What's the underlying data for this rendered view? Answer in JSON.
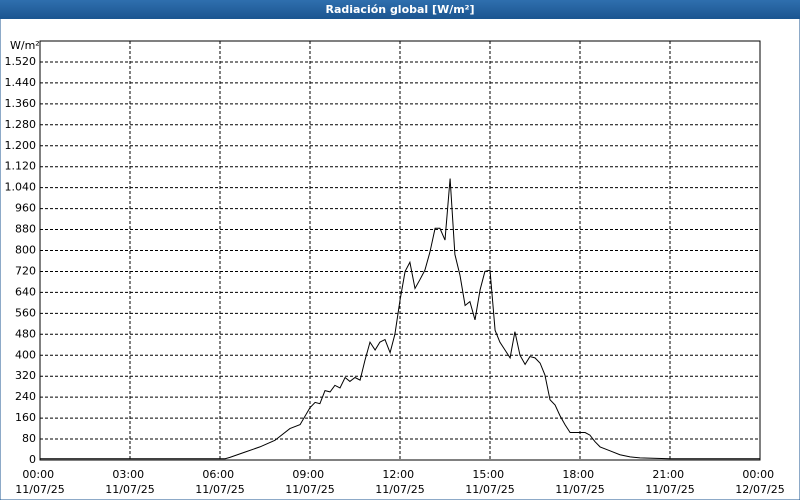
{
  "chart_data": {
    "type": "line",
    "title": "Radiación global [W/m²]",
    "y_label": "W/m²",
    "x": [
      0,
      1,
      2,
      3,
      4,
      5,
      6,
      6.17,
      6.33,
      6.83,
      7.33,
      7.83,
      8.33,
      8.67,
      9.0,
      9.17,
      9.33,
      9.5,
      9.67,
      9.83,
      10.0,
      10.17,
      10.33,
      10.5,
      10.67,
      10.83,
      11.0,
      11.17,
      11.33,
      11.5,
      11.67,
      11.83,
      12.0,
      12.17,
      12.33,
      12.5,
      12.67,
      12.83,
      13.0,
      13.17,
      13.33,
      13.5,
      13.67,
      13.83,
      14.0,
      14.17,
      14.33,
      14.5,
      14.67,
      14.83,
      15.0,
      15.17,
      15.33,
      15.5,
      15.67,
      15.83,
      16.0,
      16.17,
      16.33,
      16.5,
      16.67,
      16.83,
      17.0,
      17.17,
      17.33,
      17.5,
      17.67,
      17.83,
      18.0,
      18.17,
      18.33,
      18.5,
      18.67,
      19.0,
      19.33,
      19.67,
      20.0,
      21,
      22,
      23,
      24
    ],
    "series": [
      {
        "name": "Radiación global",
        "color": "#000000",
        "values": [
          5,
          5,
          5,
          5,
          5,
          5,
          5,
          5,
          10,
          30,
          50,
          75,
          120,
          135,
          200,
          220,
          215,
          265,
          260,
          285,
          275,
          315,
          300,
          315,
          305,
          380,
          450,
          420,
          450,
          460,
          410,
          480,
          610,
          720,
          755,
          655,
          690,
          725,
          795,
          885,
          885,
          840,
          1075,
          785,
          705,
          590,
          605,
          535,
          650,
          720,
          725,
          495,
          450,
          420,
          390,
          490,
          400,
          365,
          395,
          390,
          370,
          325,
          230,
          210,
          170,
          135,
          105,
          105,
          105,
          105,
          95,
          70,
          50,
          35,
          20,
          12,
          8,
          5,
          5,
          5,
          5
        ]
      }
    ],
    "xlim": [
      0,
      24
    ],
    "xticks": [
      {
        "value": 0,
        "label": "00:00 11/07/25"
      },
      {
        "value": 3,
        "label": "03:00 11/07/25"
      },
      {
        "value": 6,
        "label": "06:00 11/07/25"
      },
      {
        "value": 9,
        "label": "09:00 11/07/25"
      },
      {
        "value": 12,
        "label": "12:00 11/07/25"
      },
      {
        "value": 15,
        "label": "15:00 11/07/25"
      },
      {
        "value": 18,
        "label": "18:00 11/07/25"
      },
      {
        "value": 21,
        "label": "21:00 11/07/25"
      },
      {
        "value": 24,
        "label": "00:00 12/07/25"
      }
    ],
    "ylim": [
      0,
      1600
    ],
    "yticks": [
      0,
      80,
      160,
      240,
      320,
      400,
      480,
      560,
      640,
      720,
      800,
      880,
      960,
      {
        "value": 1040,
        "label": "1.040"
      },
      {
        "value": 1120,
        "label": "1.120"
      },
      {
        "value": 1200,
        "label": "1.200"
      },
      {
        "value": 1280,
        "label": "1.280"
      },
      {
        "value": 1360,
        "label": "1.360"
      },
      {
        "value": 1440,
        "label": "1.440"
      },
      {
        "value": 1520,
        "label": "1.520"
      }
    ],
    "grid": true
  }
}
